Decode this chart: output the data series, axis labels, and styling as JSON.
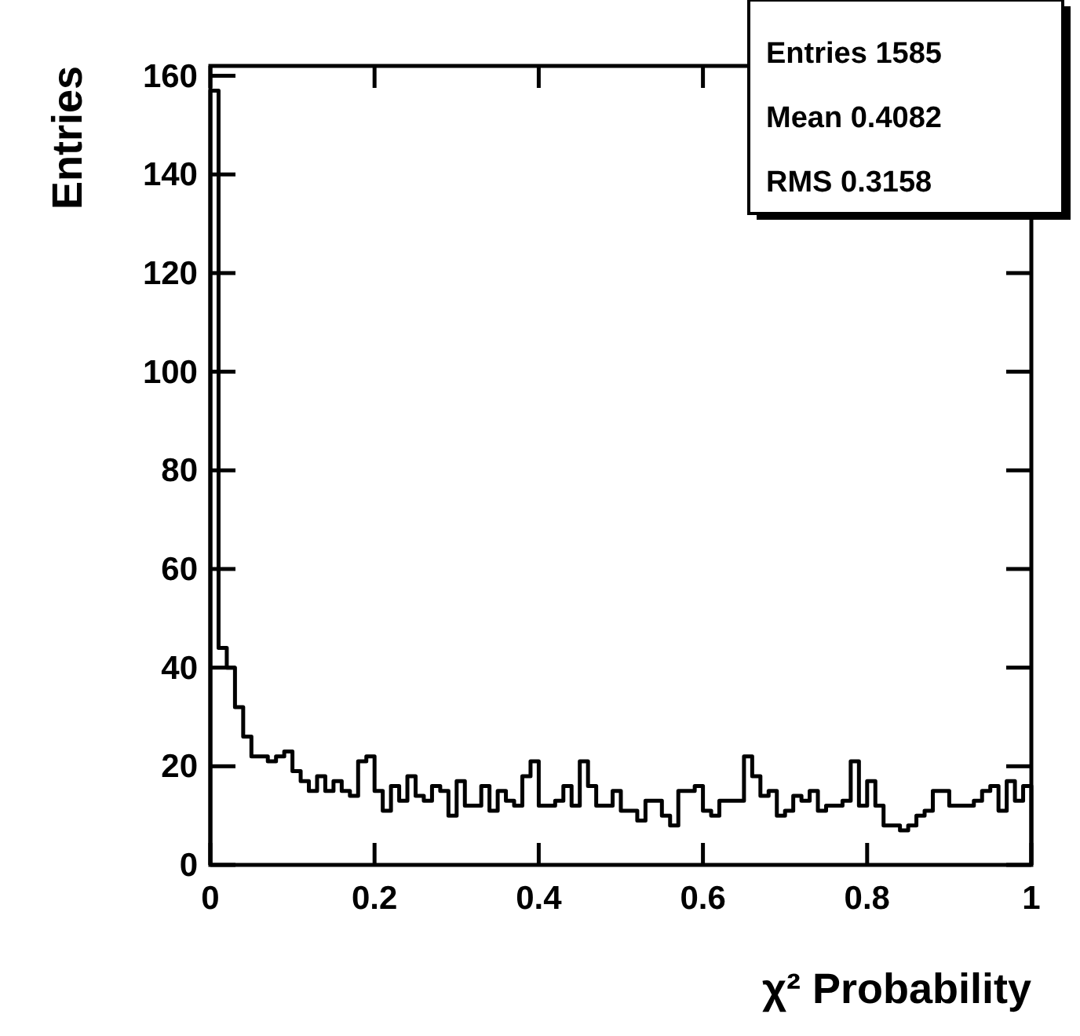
{
  "chart_data": {
    "type": "histogram",
    "xlabel": "χ² Probability",
    "ylabel": "Entries",
    "bins": [
      0,
      0.01,
      0.02,
      0.03,
      0.04,
      0.05,
      0.06,
      0.07,
      0.08,
      0.09,
      0.1,
      0.11,
      0.12,
      0.13,
      0.14,
      0.15,
      0.16,
      0.17,
      0.18,
      0.19,
      0.2,
      0.21,
      0.22,
      0.23,
      0.24,
      0.25,
      0.26,
      0.27,
      0.28,
      0.29,
      0.3,
      0.31,
      0.32,
      0.33,
      0.34,
      0.35,
      0.36,
      0.37,
      0.38,
      0.39,
      0.4,
      0.41,
      0.42,
      0.43,
      0.44,
      0.45,
      0.46,
      0.47,
      0.48,
      0.49,
      0.5,
      0.51,
      0.52,
      0.53,
      0.54,
      0.55,
      0.56,
      0.57,
      0.58,
      0.59,
      0.6,
      0.61,
      0.62,
      0.63,
      0.64,
      0.65,
      0.66,
      0.67,
      0.68,
      0.69,
      0.7,
      0.71,
      0.72,
      0.73,
      0.74,
      0.75,
      0.76,
      0.77,
      0.78,
      0.79,
      0.8,
      0.81,
      0.82,
      0.83,
      0.84,
      0.85,
      0.86,
      0.87,
      0.88,
      0.89,
      0.9,
      0.91,
      0.92,
      0.93,
      0.94,
      0.95,
      0.96,
      0.97,
      0.98,
      0.99,
      1
    ],
    "values": [
      157,
      44,
      40,
      32,
      26,
      22,
      22,
      21,
      22,
      23,
      19,
      17,
      15,
      18,
      15,
      17,
      15,
      14,
      21,
      22,
      15,
      11,
      16,
      13,
      18,
      14,
      13,
      16,
      15,
      10,
      17,
      12,
      12,
      16,
      11,
      15,
      13,
      12,
      18,
      21,
      12,
      12,
      13,
      16,
      12,
      21,
      16,
      12,
      12,
      15,
      11,
      11,
      9,
      13,
      13,
      10,
      8,
      15,
      15,
      16,
      11,
      10,
      13,
      13,
      13,
      22,
      18,
      14,
      15,
      10,
      11,
      14,
      13,
      15,
      11,
      12,
      12,
      13,
      21,
      12,
      17,
      12,
      8,
      8,
      7,
      8,
      10,
      11,
      15,
      15,
      12,
      12,
      12,
      13,
      15,
      16,
      11,
      17,
      13,
      16
    ],
    "color": "#000000",
    "xlim": [
      0,
      1
    ],
    "xticks": [
      0,
      0.2,
      0.4,
      0.6,
      0.8,
      1
    ],
    "ylim": [
      0,
      162
    ],
    "yticks": [
      0,
      20,
      40,
      60,
      80,
      100,
      120,
      140,
      160
    ],
    "grid": false,
    "annotations": [
      "Entries 1585",
      "Mean 0.4082",
      "RMS 0.3158"
    ]
  }
}
